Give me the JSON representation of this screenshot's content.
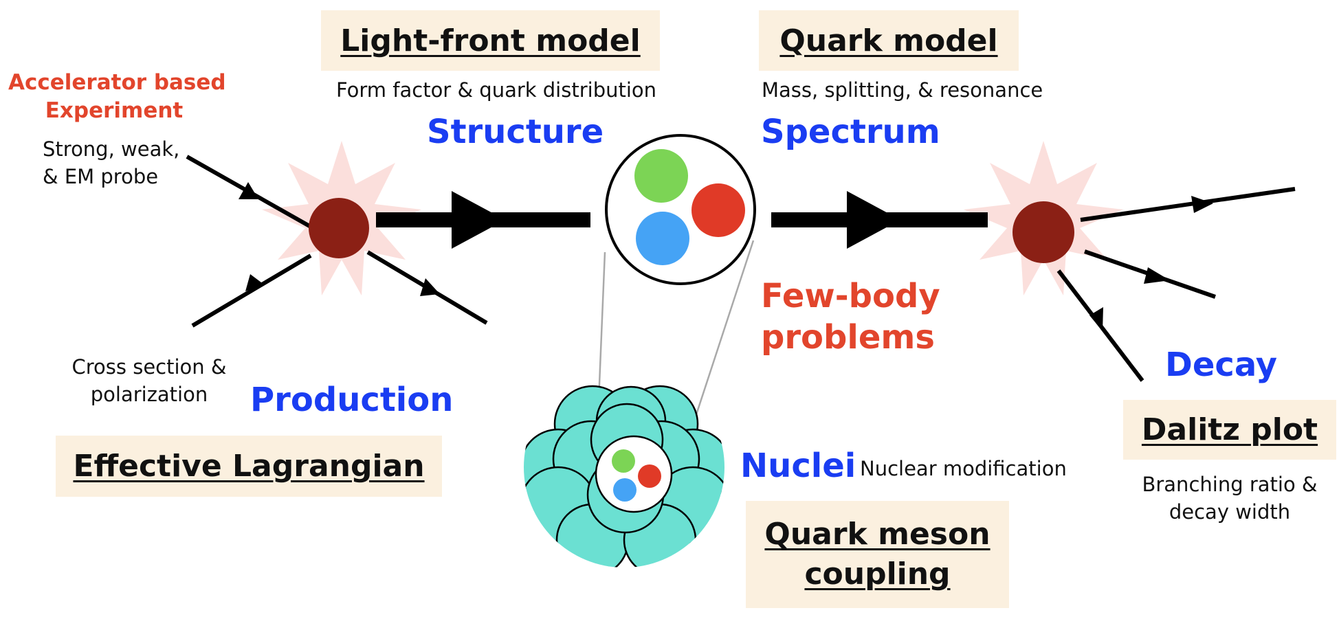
{
  "boxes": {
    "light_front": "Light-front model",
    "quark_model": "Quark model",
    "effective_lagrangian": "Effective Lagrangian",
    "dalitz": "Dalitz plot",
    "qmc_line1": "Quark meson",
    "qmc_line2": "coupling"
  },
  "captions": {
    "form_factor": "Form factor & quark distribution",
    "mass": "Mass, splitting, & resonance",
    "probe_line1": "Strong, weak,",
    "probe_line2": "& EM probe",
    "cross_line1": "Cross section &",
    "cross_line2": "polarization",
    "nuclear_mod": "Nuclear modification",
    "branching_line1": "Branching ratio &",
    "branching_line2": "decay width"
  },
  "topics": {
    "structure": "Structure",
    "spectrum": "Spectrum",
    "production": "Production",
    "decay": "Decay",
    "nuclei": "Nuclei"
  },
  "highlights": {
    "accelerator_line1": "Accelerator based",
    "accelerator_line2": "Experiment",
    "fewbody_line1": "Few-body",
    "fewbody_line2": "problems"
  },
  "colors": {
    "box_fill": "#fbf0df",
    "topic_blue": "#1a3df2",
    "accent_red": "#e2452c",
    "vertex": "#8b2015",
    "star_glow": "#f9d9d6",
    "quark_green": "#7cd455",
    "quark_red": "#e03a27",
    "quark_blue": "#45a3f5",
    "nucleon": "#6be0d2"
  }
}
